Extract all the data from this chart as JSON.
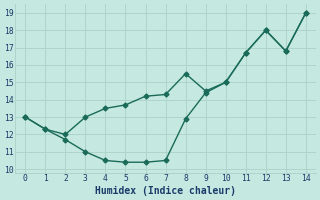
{
  "line1_x": [
    0,
    1,
    2,
    3,
    4,
    5,
    6,
    7,
    8,
    9,
    10,
    11,
    12,
    13,
    14
  ],
  "line1_y": [
    13.0,
    12.3,
    12.0,
    13.0,
    13.5,
    13.7,
    14.2,
    14.3,
    15.5,
    14.5,
    15.0,
    16.7,
    18.0,
    16.8,
    19.0
  ],
  "line2_x": [
    0,
    1,
    2,
    3,
    4,
    5,
    6,
    7,
    8,
    9,
    10,
    11,
    12,
    13,
    14
  ],
  "line2_y": [
    13.0,
    12.3,
    11.7,
    11.0,
    10.5,
    10.4,
    10.4,
    10.5,
    12.9,
    14.4,
    15.0,
    16.7,
    18.0,
    16.8,
    19.0
  ],
  "line_color": "#1a6b5a",
  "bg_color": "#c5e8e0",
  "grid_color": "#afd4cb",
  "xlabel": "Humidex (Indice chaleur)",
  "xlim": [
    -0.5,
    14.5
  ],
  "ylim": [
    9.8,
    19.5
  ],
  "xticks": [
    0,
    1,
    2,
    3,
    4,
    5,
    6,
    7,
    8,
    9,
    10,
    11,
    12,
    13,
    14
  ],
  "yticks": [
    10,
    11,
    12,
    13,
    14,
    15,
    16,
    17,
    18,
    19
  ],
  "marker": "D",
  "markersize": 2.5,
  "linewidth": 1.0,
  "font_color": "#1a3a6a",
  "tick_fontsize": 5.8,
  "label_fontsize": 7.0
}
